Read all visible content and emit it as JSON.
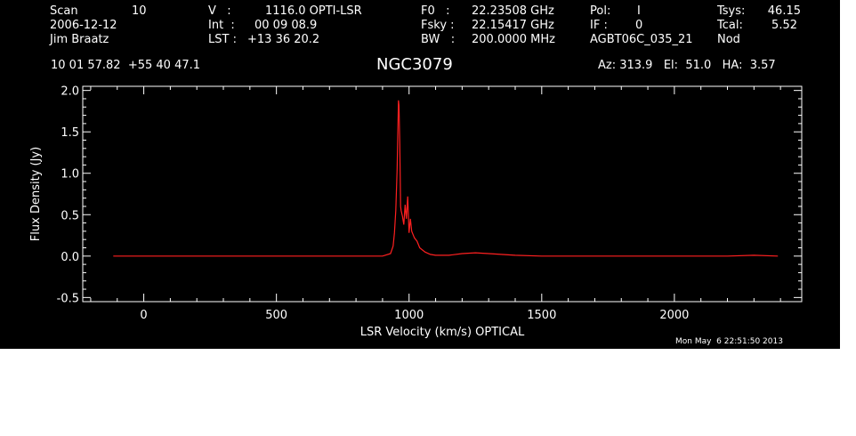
{
  "header": {
    "scan_label": "Scan",
    "scan_value": "10",
    "date": "2006-12-12",
    "observer": "Jim Braatz",
    "v_label": "V   :",
    "v_value": "1116.0 OPTI-LSR",
    "int_label": "Int  :",
    "int_value": "00 09 08.9",
    "lst_label": "LST :",
    "lst_value": "+13 36 20.2",
    "f0_label": "F0   :",
    "f0_value": "22.23508 GHz",
    "fsky_label": "Fsky :",
    "fsky_value": "22.15417 GHz",
    "bw_label": "BW   :",
    "bw_value": "200.0000 MHz",
    "pol_label": "Pol:",
    "pol_value": "I",
    "if_label": "IF :",
    "if_value": "0",
    "project": "AGBT06C_035_21",
    "tsys_label": "Tsys:",
    "tsys_value": "46.15",
    "tcal_label": "Tcal:",
    "tcal_value": "5.52",
    "mode": "Nod",
    "coords": "10 01 57.82  +55 40 47.1",
    "source": "NGC3079",
    "azelha": "Az: 313.9   El:  51.0   HA:  3.57",
    "timestamp": "Mon May  6 22:51:50 2013"
  },
  "colors": {
    "background": "#000000",
    "foreground": "#ffffff",
    "trace": "#ff2020"
  },
  "chart_data": {
    "type": "line",
    "xlabel": "LSR Velocity (km/s) OPTICAL",
    "ylabel": "Flux Density (Jy)",
    "xlim": [
      -230,
      2480
    ],
    "ylim": [
      -0.55,
      2.05
    ],
    "xticks": [
      0,
      500,
      1000,
      1500,
      2000
    ],
    "yticks": [
      -0.5,
      0.0,
      0.5,
      1.0,
      1.5,
      2.0
    ],
    "ytick_labels": [
      "-0.5",
      "0.0",
      "0.5",
      "1.0",
      "1.5",
      "2.0"
    ],
    "series": [
      {
        "x": [
          -115,
          0,
          200,
          400,
          600,
          800,
          900,
          930,
          940,
          945,
          950,
          955,
          960,
          962,
          965,
          968,
          970,
          975,
          980,
          985,
          990,
          995,
          1000,
          1005,
          1010,
          1020,
          1030,
          1040,
          1060,
          1080,
          1100,
          1150,
          1200,
          1250,
          1300,
          1400,
          1500,
          1600,
          1700,
          1800,
          1900,
          2000,
          2100,
          2200,
          2300,
          2390
        ],
        "y": [
          0.0,
          0.0,
          0.0,
          0.0,
          0.0,
          0.0,
          0.0,
          0.03,
          0.12,
          0.28,
          0.55,
          1.05,
          1.88,
          1.82,
          1.35,
          0.6,
          0.55,
          0.48,
          0.38,
          0.62,
          0.45,
          0.72,
          0.28,
          0.45,
          0.3,
          0.22,
          0.18,
          0.1,
          0.05,
          0.02,
          0.01,
          0.01,
          0.03,
          0.04,
          0.03,
          0.01,
          0.0,
          0.0,
          0.0,
          0.0,
          0.0,
          0.0,
          0.0,
          0.0,
          0.01,
          0.0
        ]
      }
    ]
  }
}
